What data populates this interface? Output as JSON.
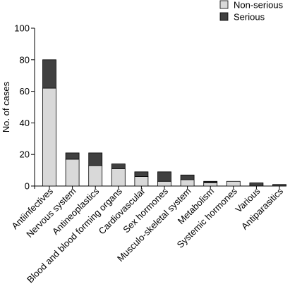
{
  "chart_data": {
    "type": "bar",
    "stacked": true,
    "title": "",
    "xlabel": "",
    "ylabel": "No. of cases",
    "ylim": [
      0,
      100
    ],
    "yticks": [
      0,
      20,
      40,
      60,
      80,
      100
    ],
    "legend_position": "top-right",
    "categories": [
      "Antiinfectives",
      "Nervous system",
      "Antineoplastics",
      "Blood and blood forming organs",
      "Cardiovascular",
      "Sex hormones",
      "Musculo-skeletal system",
      "Metabolism",
      "Systemic hormones",
      "Various",
      "Antiparasitics"
    ],
    "series": [
      {
        "name": "Non-serious",
        "color": "#d9d9d9",
        "values": [
          62,
          17,
          13,
          11,
          6,
          3,
          4,
          2,
          3,
          0,
          0
        ]
      },
      {
        "name": "Serious",
        "color": "#404040",
        "values": [
          18,
          4,
          8,
          3,
          3,
          6,
          3,
          1,
          0,
          2,
          1
        ]
      }
    ]
  }
}
